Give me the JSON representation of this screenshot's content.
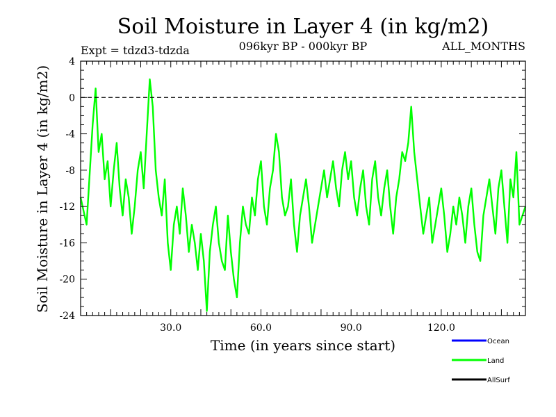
{
  "chart_data": {
    "type": "line",
    "title": "Soil Moisture in Layer 4 (in kg/m2)",
    "subtitle_left": "Expt = tdzd3-tdzda",
    "subtitle_center": "096kyr BP - 000kyr BP",
    "subtitle_right": "ALL_MONTHS",
    "xlabel": "Time (in years since start)",
    "ylabel": "Soil Moisture in Layer 4 (in kg/m2)",
    "xlim": [
      0,
      148
    ],
    "ylim": [
      -24,
      4
    ],
    "xticks": [
      30.0,
      60.0,
      90.0,
      120.0
    ],
    "xtick_labels": [
      "30.0",
      "60.0",
      "90.0",
      "120.0"
    ],
    "yticks": [
      4,
      0,
      -4,
      -8,
      -12,
      -16,
      -20,
      -24
    ],
    "ytick_labels": [
      "4",
      "0",
      "-4",
      "-8",
      "-12",
      "-16",
      "-20",
      "-24"
    ],
    "reference_line": 0,
    "series": [
      {
        "name": "Land",
        "color": "#00ff00",
        "x": [
          0,
          2,
          4,
          5,
          6,
          7,
          8,
          9,
          10,
          11,
          12,
          13,
          14,
          15,
          16,
          17,
          18,
          19,
          20,
          21,
          22,
          23,
          24,
          25,
          26,
          27,
          28,
          29,
          30,
          31,
          32,
          33,
          34,
          35,
          36,
          37,
          38,
          39,
          40,
          41,
          42,
          43,
          44,
          45,
          46,
          47,
          48,
          49,
          50,
          51,
          52,
          53,
          54,
          55,
          56,
          57,
          58,
          59,
          60,
          61,
          62,
          63,
          64,
          65,
          66,
          67,
          68,
          69,
          70,
          71,
          72,
          73,
          74,
          75,
          76,
          77,
          78,
          79,
          80,
          81,
          82,
          83,
          84,
          85,
          86,
          87,
          88,
          89,
          90,
          91,
          92,
          93,
          94,
          95,
          96,
          97,
          98,
          99,
          100,
          101,
          102,
          103,
          104,
          105,
          106,
          107,
          108,
          109,
          110,
          111,
          112,
          113,
          114,
          115,
          116,
          117,
          118,
          119,
          120,
          121,
          122,
          123,
          124,
          125,
          126,
          127,
          128,
          129,
          130,
          131,
          132,
          133,
          134,
          135,
          136,
          137,
          138,
          139,
          140,
          141,
          142,
          143,
          144,
          145,
          146,
          147,
          148
        ],
        "values": [
          -11,
          -14,
          -3,
          1,
          -6,
          -4,
          -9,
          -7,
          -12,
          -8,
          -5,
          -10,
          -13,
          -9,
          -11,
          -15,
          -12,
          -8,
          -6,
          -10,
          -4,
          2,
          -1,
          -8,
          -11,
          -13,
          -9,
          -16,
          -19,
          -14,
          -12,
          -15,
          -10,
          -13,
          -17,
          -14,
          -16,
          -19,
          -15,
          -18,
          -23.5,
          -17,
          -14,
          -12,
          -16,
          -18,
          -19,
          -13,
          -17,
          -20,
          -22,
          -16,
          -12,
          -14,
          -15,
          -11,
          -13,
          -9,
          -7,
          -12,
          -14,
          -10,
          -8,
          -4,
          -6,
          -11,
          -13,
          -12,
          -9,
          -14,
          -17,
          -13,
          -11,
          -9,
          -12,
          -16,
          -14,
          -12,
          -10,
          -8,
          -11,
          -9,
          -7,
          -10,
          -12,
          -8,
          -6,
          -9,
          -7,
          -11,
          -13,
          -10,
          -8,
          -12,
          -14,
          -9,
          -7,
          -11,
          -13,
          -10,
          -8,
          -12,
          -15,
          -11,
          -9,
          -6,
          -7,
          -5,
          -1,
          -6,
          -9,
          -12,
          -15,
          -13,
          -11,
          -16,
          -14,
          -12,
          -10,
          -13,
          -17,
          -15,
          -12,
          -14,
          -11,
          -13,
          -16,
          -12,
          -10,
          -14,
          -17,
          -18,
          -13,
          -11,
          -9,
          -12,
          -15,
          -10,
          -8,
          -12,
          -16,
          -9,
          -11,
          -6,
          -14,
          -13,
          -12
        ]
      }
    ],
    "legend": [
      {
        "label": "Ocean",
        "color": "#0000ff"
      },
      {
        "label": "Land",
        "color": "#00ff00"
      },
      {
        "label": "AllSurf",
        "color": "#000000"
      }
    ],
    "legend_position": "bottom-right"
  }
}
